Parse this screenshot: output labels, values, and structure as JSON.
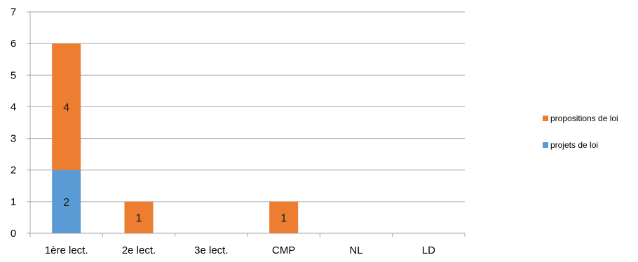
{
  "chart_data": {
    "type": "bar",
    "stacked": true,
    "categories": [
      "1ère lect.",
      "2e lect.",
      "3e lect.",
      "CMP",
      "NL",
      "LD"
    ],
    "series": [
      {
        "name": "projets de loi",
        "values": [
          2,
          0,
          0,
          0,
          0,
          0
        ],
        "color": "#5B9BD5"
      },
      {
        "name": "propositions de loi",
        "values": [
          4,
          1,
          0,
          1,
          0,
          0
        ],
        "color": "#ED7D31"
      }
    ],
    "ylim": [
      0,
      7
    ],
    "yticks": [
      "0",
      "1",
      "2",
      "3",
      "4",
      "5",
      "6",
      "7"
    ],
    "grid": true,
    "legend_position": "right",
    "title": "",
    "xlabel": "",
    "ylabel": ""
  }
}
